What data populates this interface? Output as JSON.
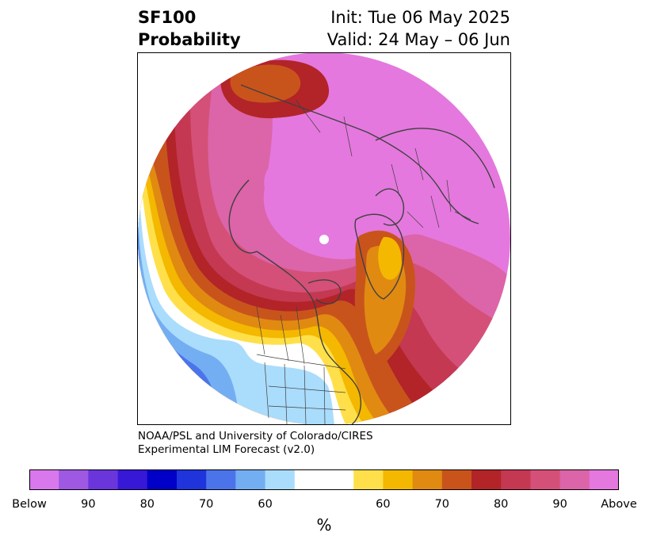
{
  "header": {
    "title_line1": "SF100",
    "title_line2": "Probability",
    "init": "Init: Tue 06 May 2025",
    "valid": "Valid: 24 May – 06 Jun"
  },
  "credit": {
    "line1": "NOAA/PSL and University of Colorado/CIRES",
    "line2": "Experimental LIM Forecast (v2.0)"
  },
  "colorbar": {
    "colors": [
      "#d878ec",
      "#9e58e2",
      "#6a36dc",
      "#3618d6",
      "#0000c8",
      "#2034dc",
      "#4c74ea",
      "#74aef2",
      "#aadcfc",
      "#ffffff",
      "#ffffff",
      "#ffe04a",
      "#f4b800",
      "#e08a12",
      "#c8541c",
      "#b22428",
      "#c43852",
      "#d45078",
      "#dc64a8",
      "#e478de"
    ],
    "tick_labels": [
      "Below",
      "90",
      "80",
      "70",
      "60",
      "60",
      "70",
      "80",
      "90",
      "Above"
    ],
    "unit": "%"
  },
  "map": {
    "colors": {
      "magenta": "#e478de",
      "pink": "#dc64a8",
      "rose": "#d45078",
      "crimson_light": "#c43852",
      "crimson": "#b22428",
      "rust": "#c8541c",
      "orange": "#e08a12",
      "gold": "#f4b800",
      "yellow": "#ffe04a",
      "white": "#ffffff",
      "lightblue": "#aadcfc",
      "skyblue": "#74aef2",
      "blue": "#4c74ea",
      "royalblue": "#2034dc",
      "darkblue": "#0000c8",
      "coast": "#404040"
    }
  }
}
